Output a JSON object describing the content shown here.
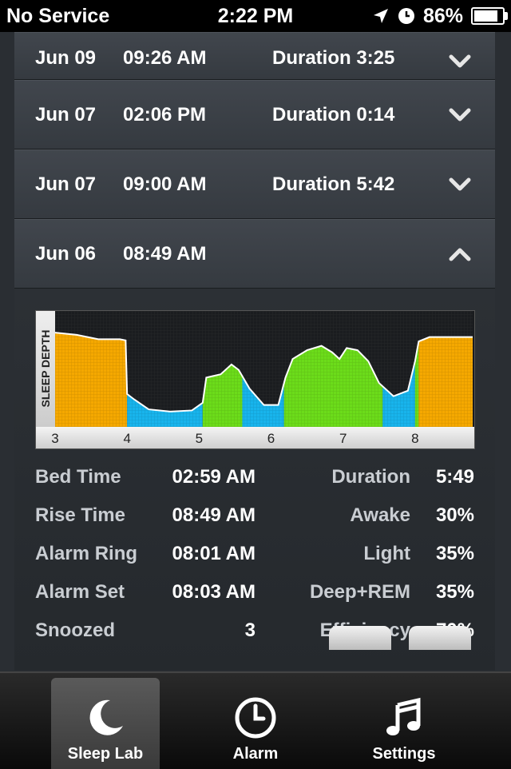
{
  "status": {
    "carrier": "No Service",
    "time": "2:22 PM",
    "battery": "86%",
    "battery_level": 0.86
  },
  "sessions": [
    {
      "date": "Jun 09",
      "time": "09:26 AM",
      "duration": "Duration 3:25",
      "expanded": false
    },
    {
      "date": "Jun 07",
      "time": "02:06 PM",
      "duration": "Duration 0:14",
      "expanded": false
    },
    {
      "date": "Jun 07",
      "time": "09:00 AM",
      "duration": "Duration 5:42",
      "expanded": false
    },
    {
      "date": "Jun 06",
      "time": "08:49 AM",
      "duration": "",
      "expanded": true
    }
  ],
  "chart_data": {
    "type": "area",
    "ylabel": "SLEEP DEPTH",
    "xlabel": "",
    "x_ticks": [
      "3",
      "4",
      "5",
      "6",
      "7",
      "8"
    ],
    "xlim": [
      3,
      8.8
    ],
    "ylim": [
      0,
      1
    ],
    "colors": {
      "awake": "#f5a800",
      "light": "#6cdc1a",
      "deep": "#18b4ec"
    },
    "segments": [
      {
        "stage": "awake",
        "x_start": 3.0,
        "x_end": 4.0
      },
      {
        "stage": "deep",
        "x_start": 4.0,
        "x_end": 5.05
      },
      {
        "stage": "light",
        "x_start": 5.05,
        "x_end": 5.6
      },
      {
        "stage": "deep",
        "x_start": 5.6,
        "x_end": 6.18
      },
      {
        "stage": "light",
        "x_start": 6.18,
        "x_end": 7.55
      },
      {
        "stage": "deep",
        "x_start": 7.55,
        "x_end": 8.0
      },
      {
        "stage": "light",
        "x_start": 8.0,
        "x_end": 8.05
      },
      {
        "stage": "awake",
        "x_start": 8.05,
        "x_end": 8.8
      }
    ],
    "curve": [
      [
        3.0,
        0.86
      ],
      [
        3.3,
        0.84
      ],
      [
        3.6,
        0.8
      ],
      [
        3.9,
        0.8
      ],
      [
        3.98,
        0.79
      ],
      [
        4.0,
        0.3
      ],
      [
        4.1,
        0.25
      ],
      [
        4.3,
        0.16
      ],
      [
        4.6,
        0.14
      ],
      [
        4.9,
        0.15
      ],
      [
        5.05,
        0.22
      ],
      [
        5.1,
        0.45
      ],
      [
        5.3,
        0.48
      ],
      [
        5.45,
        0.57
      ],
      [
        5.55,
        0.52
      ],
      [
        5.7,
        0.35
      ],
      [
        5.9,
        0.2
      ],
      [
        6.1,
        0.2
      ],
      [
        6.2,
        0.45
      ],
      [
        6.3,
        0.62
      ],
      [
        6.5,
        0.7
      ],
      [
        6.7,
        0.74
      ],
      [
        6.85,
        0.68
      ],
      [
        6.95,
        0.62
      ],
      [
        7.05,
        0.72
      ],
      [
        7.2,
        0.7
      ],
      [
        7.35,
        0.6
      ],
      [
        7.5,
        0.4
      ],
      [
        7.7,
        0.28
      ],
      [
        7.9,
        0.33
      ],
      [
        8.0,
        0.6
      ],
      [
        8.05,
        0.78
      ],
      [
        8.2,
        0.82
      ],
      [
        8.5,
        0.82
      ],
      [
        8.8,
        0.82
      ]
    ]
  },
  "stats": [
    {
      "label": "Bed Time",
      "value": "02:59 AM",
      "label2": "Duration",
      "value2": "5:49"
    },
    {
      "label": "Rise Time",
      "value": "08:49 AM",
      "label2": "Awake",
      "value2": "30%"
    },
    {
      "label": "Alarm Ring",
      "value": "08:01 AM",
      "label2": "Light",
      "value2": "35%"
    },
    {
      "label": "Alarm Set",
      "value": "08:03 AM",
      "label2": "Deep+REM",
      "value2": "35%"
    },
    {
      "label": "Snoozed",
      "value": "3",
      "label2": "Efficiency",
      "value2": "70%"
    }
  ],
  "tabs": [
    {
      "label": "Sleep Lab",
      "icon": "moon-icon",
      "active": true
    },
    {
      "label": "Alarm",
      "icon": "clock-icon",
      "active": false
    },
    {
      "label": "Settings",
      "icon": "music-note-icon",
      "active": false
    }
  ]
}
